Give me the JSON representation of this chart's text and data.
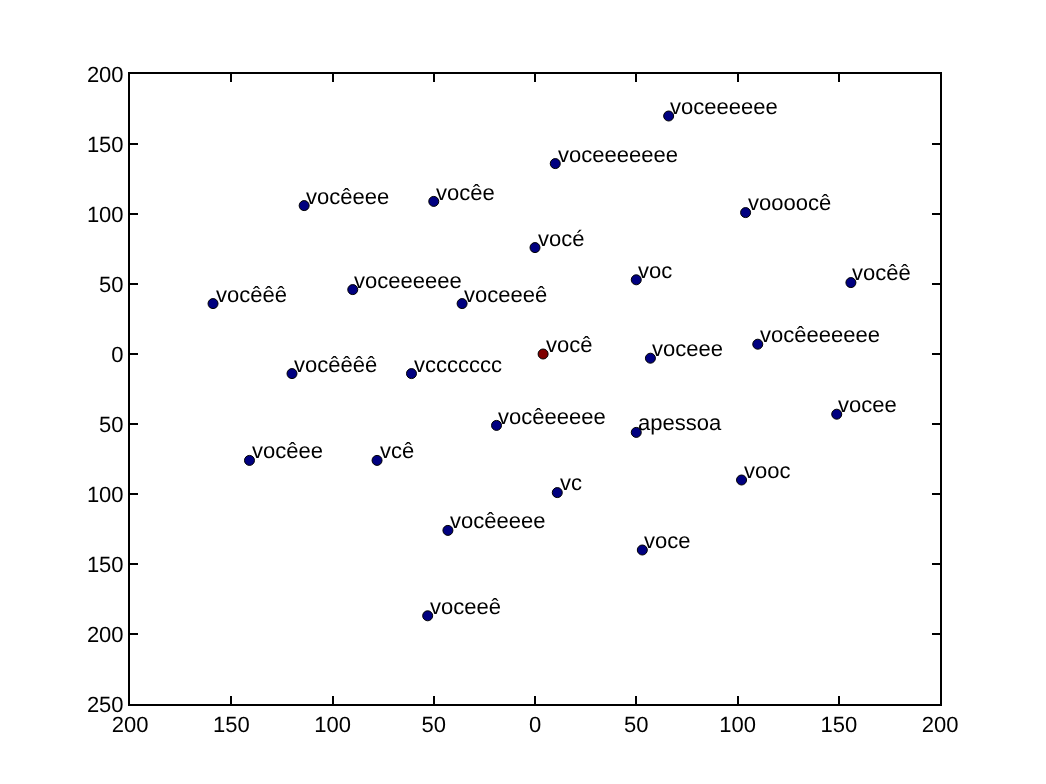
{
  "chart_data": {
    "type": "scatter",
    "marker": "circle",
    "x": [
      66,
      10,
      104,
      0,
      50,
      156,
      -114,
      -50,
      -159,
      -90,
      -36,
      4,
      -120,
      -61,
      57,
      110,
      149,
      50,
      -19,
      -141,
      -78,
      11,
      102,
      -43,
      53,
      -53
    ],
    "values": [
      170,
      136,
      101,
      76,
      53,
      51,
      106,
      109,
      36,
      46,
      36,
      0,
      -14,
      -14,
      -3,
      7,
      -43,
      -56,
      -51,
      -76,
      -76,
      -99,
      -90,
      -126,
      -140,
      -187
    ],
    "colors": [
      "#000080",
      "#000080",
      "#000080",
      "#000080",
      "#000080",
      "#000080",
      "#000080",
      "#000080",
      "#000080",
      "#000080",
      "#000080",
      "#800000",
      "#000080",
      "#000080",
      "#000080",
      "#000080",
      "#000080",
      "#000080",
      "#000080",
      "#000080",
      "#000080",
      "#000080",
      "#000080",
      "#000080",
      "#000080",
      "#000080"
    ],
    "annotations": [
      {
        "text": "voceeeeee",
        "x": 66,
        "y": 170
      },
      {
        "text": "voceeeeeee",
        "x": 10,
        "y": 136
      },
      {
        "text": "voooocê",
        "x": 104,
        "y": 101
      },
      {
        "text": "vocé",
        "x": 0,
        "y": 76
      },
      {
        "text": "voc",
        "x": 50,
        "y": 53
      },
      {
        "text": "vocêê",
        "x": 156,
        "y": 51
      },
      {
        "text": "vocêeee",
        "x": -114,
        "y": 106
      },
      {
        "text": "vocêe",
        "x": -50,
        "y": 109
      },
      {
        "text": "vocêêê",
        "x": -159,
        "y": 36
      },
      {
        "text": "voceeeeee",
        "x": -90,
        "y": 46
      },
      {
        "text": "voceeeê",
        "x": -36,
        "y": 36
      },
      {
        "text": "você",
        "x": 4,
        "y": 0
      },
      {
        "text": "vocêêêê",
        "x": -120,
        "y": -14
      },
      {
        "text": "vccccccc",
        "x": -61,
        "y": -14
      },
      {
        "text": "voceee",
        "x": 57,
        "y": -3
      },
      {
        "text": "vocêeeeeee",
        "x": 110,
        "y": 7
      },
      {
        "text": "vocee",
        "x": 149,
        "y": -43
      },
      {
        "text": "apessoa",
        "x": 50,
        "y": -56
      },
      {
        "text": "vocêeeeee",
        "x": -19,
        "y": -51
      },
      {
        "text": "vocêee",
        "x": -141,
        "y": -76
      },
      {
        "text": "vcê",
        "x": -78,
        "y": -76
      },
      {
        "text": "vc",
        "x": 11,
        "y": -99
      },
      {
        "text": "vooc",
        "x": 102,
        "y": -90
      },
      {
        "text": "vocêeeee",
        "x": -43,
        "y": -126
      },
      {
        "text": "voce",
        "x": 53,
        "y": -140
      },
      {
        "text": "voceeê",
        "x": -53,
        "y": -187
      }
    ],
    "xlim": [
      -200,
      200
    ],
    "xticks": [
      {
        "value": -200,
        "label": "200"
      },
      {
        "value": -150,
        "label": "150"
      },
      {
        "value": -100,
        "label": "100"
      },
      {
        "value": -50,
        "label": "50"
      },
      0,
      50,
      100,
      150,
      200
    ],
    "ylim": [
      -250,
      200
    ],
    "yticks": [
      {
        "value": -250,
        "label": "250"
      },
      {
        "value": -200,
        "label": "200"
      },
      {
        "value": -150,
        "label": "150"
      },
      {
        "value": -100,
        "label": "100"
      },
      {
        "value": -50,
        "label": "50"
      },
      0,
      50,
      100,
      150,
      200
    ]
  }
}
